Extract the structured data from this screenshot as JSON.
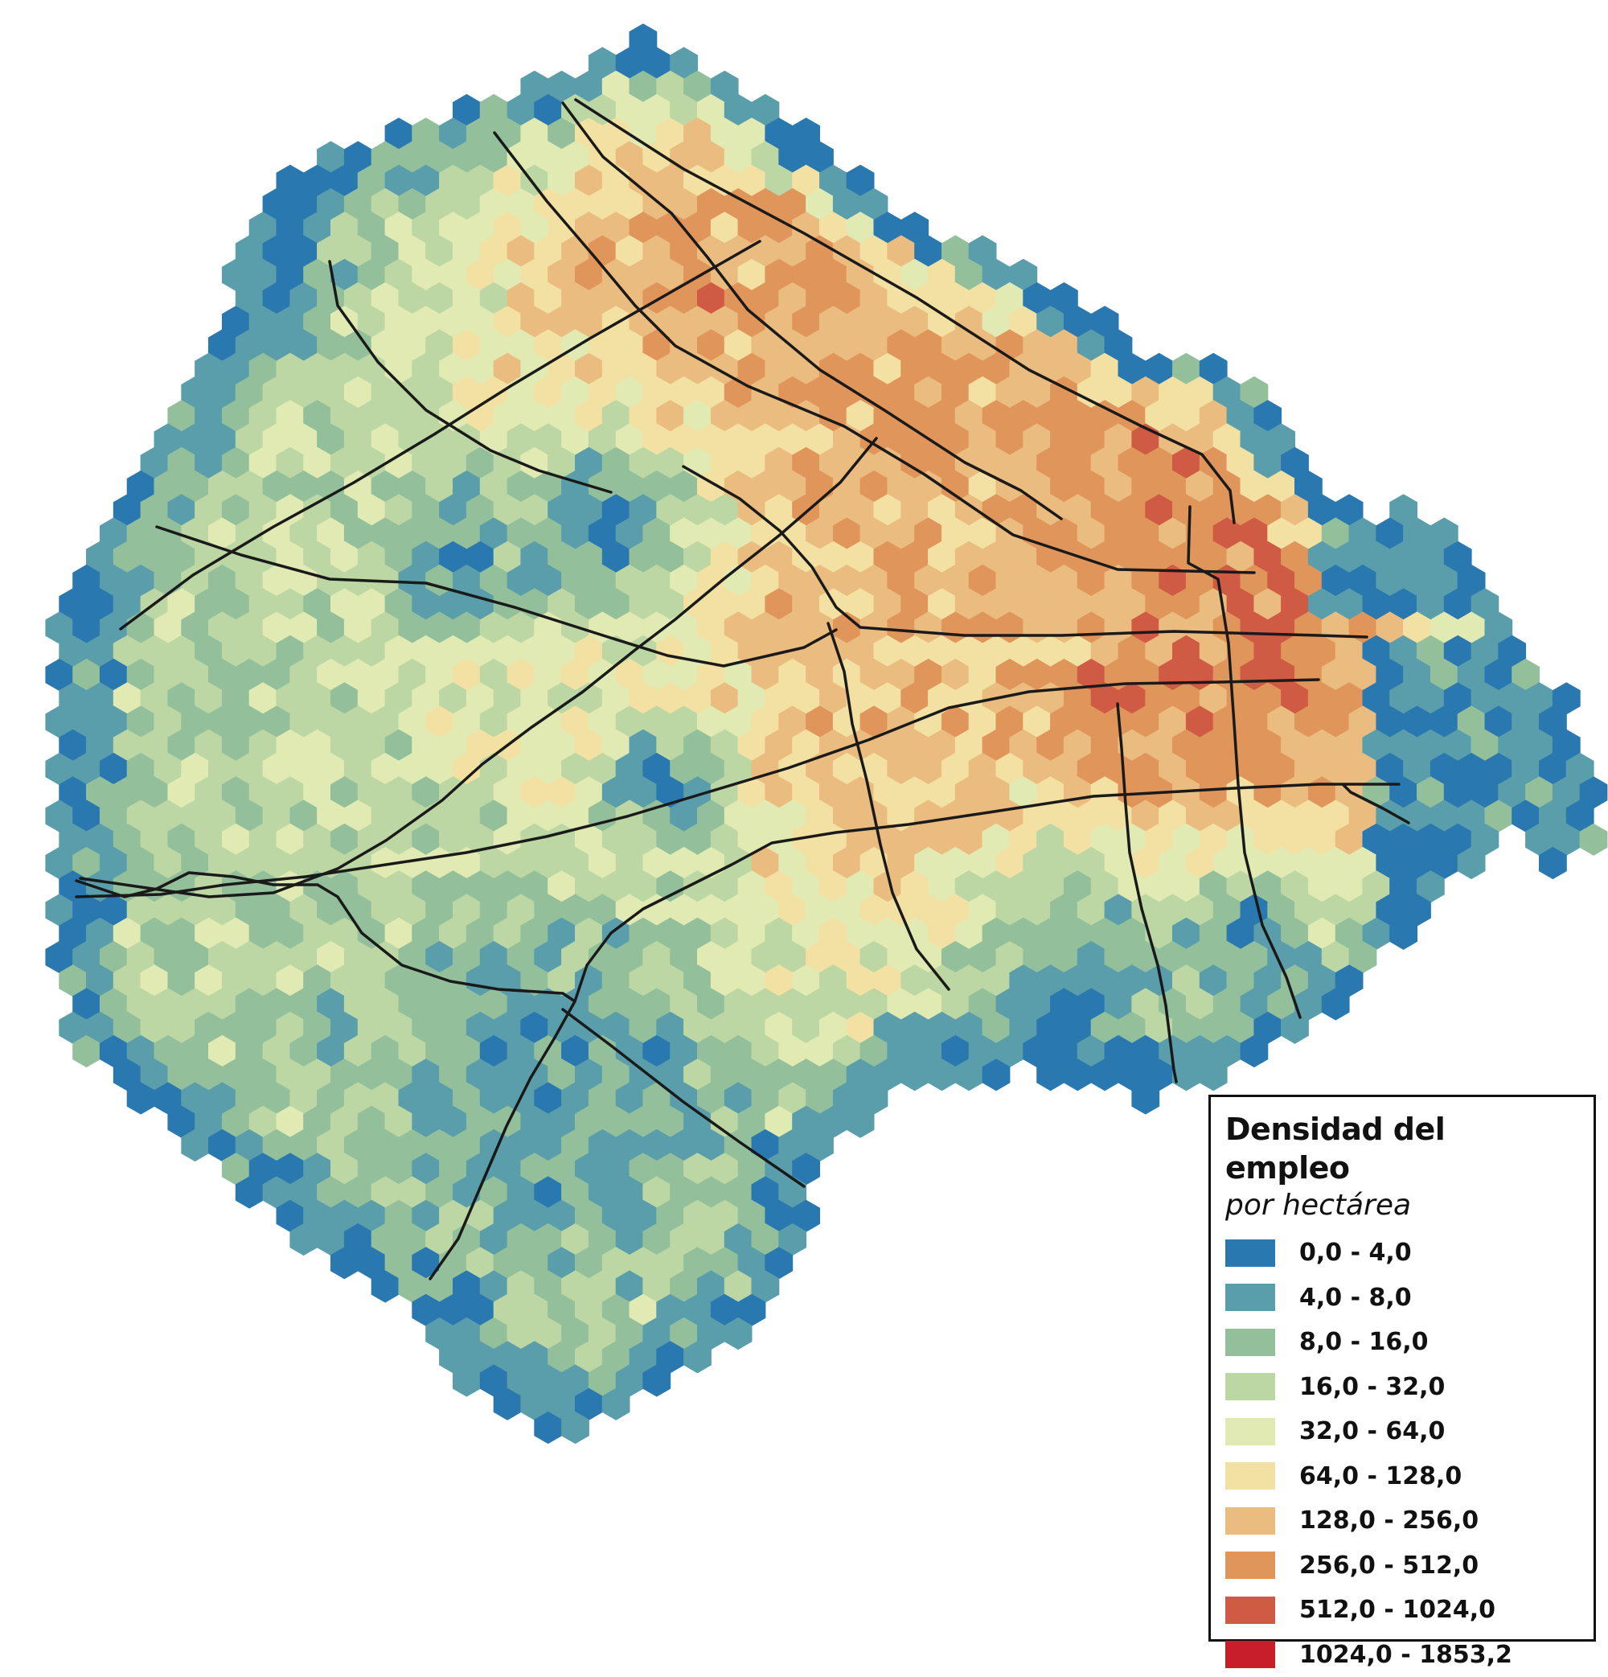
{
  "legend": {
    "title": "Densidad del empleo",
    "subtitle": "por hectárea",
    "classes": [
      {
        "label": "0,0 - 4,0",
        "color": "#2a78b0"
      },
      {
        "label": "4,0 - 8,0",
        "color": "#5a9eac"
      },
      {
        "label": "8,0 - 16,0",
        "color": "#93c09b"
      },
      {
        "label": "16,0 - 32,0",
        "color": "#bcd7a3"
      },
      {
        "label": "32,0 - 64,0",
        "color": "#e1eab3"
      },
      {
        "label": "64,0 - 128,0",
        "color": "#f3e1a3"
      },
      {
        "label": "128,0 - 256,0",
        "color": "#ebbc7f"
      },
      {
        "label": "256,0 - 512,0",
        "color": "#e0955b"
      },
      {
        "label": "512,0 - 1024,0",
        "color": "#d05b44"
      },
      {
        "label": "1024,0 - 1853,2",
        "color": "#c81e2a"
      }
    ]
  }
}
